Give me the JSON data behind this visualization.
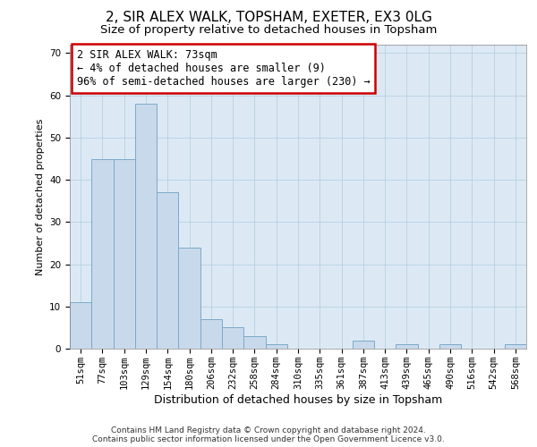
{
  "title1": "2, SIR ALEX WALK, TOPSHAM, EXETER, EX3 0LG",
  "title2": "Size of property relative to detached houses in Topsham",
  "xlabel": "Distribution of detached houses by size in Topsham",
  "ylabel": "Number of detached properties",
  "categories": [
    "51sqm",
    "77sqm",
    "103sqm",
    "129sqm",
    "154sqm",
    "180sqm",
    "206sqm",
    "232sqm",
    "258sqm",
    "284sqm",
    "310sqm",
    "335sqm",
    "361sqm",
    "387sqm",
    "413sqm",
    "439sqm",
    "465sqm",
    "490sqm",
    "516sqm",
    "542sqm",
    "568sqm"
  ],
  "values": [
    11,
    45,
    45,
    58,
    37,
    24,
    7,
    5,
    3,
    1,
    0,
    0,
    0,
    2,
    0,
    1,
    0,
    1,
    0,
    0,
    1
  ],
  "bar_color": "#c9d9ec",
  "bar_edge_color": "#7aaac8",
  "annotation_box_color": "#ffffff",
  "annotation_border_color": "#cc0000",
  "annotation_text": "2 SIR ALEX WALK: 73sqm\n← 4% of detached houses are smaller (9)\n96% of semi-detached houses are larger (230) →",
  "ylim": [
    0,
    72
  ],
  "yticks": [
    0,
    10,
    20,
    30,
    40,
    50,
    60,
    70
  ],
  "grid_color": "#b8cfe0",
  "background_color": "#dce9f5",
  "footer1": "Contains HM Land Registry data © Crown copyright and database right 2024.",
  "footer2": "Contains public sector information licensed under the Open Government Licence v3.0.",
  "title1_fontsize": 11,
  "title2_fontsize": 9.5,
  "xlabel_fontsize": 9,
  "ylabel_fontsize": 8,
  "tick_fontsize": 7.5,
  "annotation_fontsize": 8.5,
  "footer_fontsize": 6.5
}
